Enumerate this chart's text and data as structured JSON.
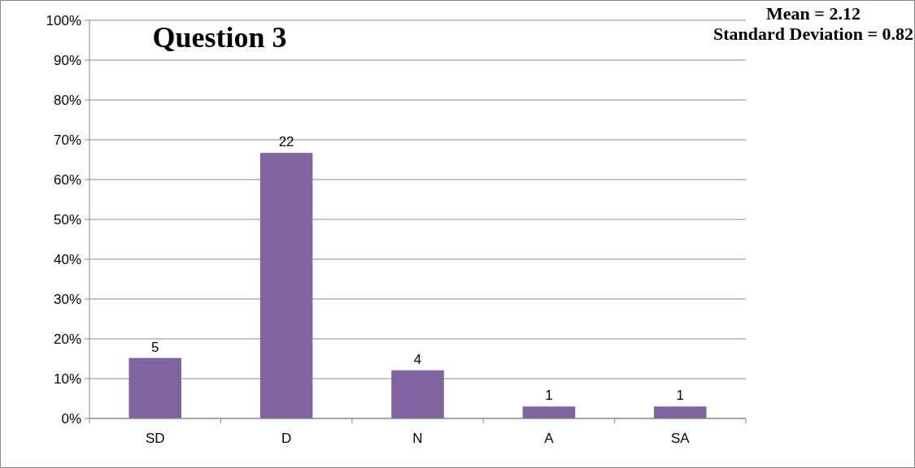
{
  "chart_data": {
    "type": "bar",
    "title": "Question 3",
    "categories": [
      "SD",
      "D",
      "N",
      "A",
      "SA"
    ],
    "values": [
      15.2,
      66.7,
      12.1,
      3,
      3
    ],
    "color": "#8064a2",
    "ylim": [
      0,
      100
    ],
    "yticks": [
      {
        "value": 0,
        "label": "0%"
      },
      {
        "value": 10,
        "label": "10%"
      },
      {
        "value": 20,
        "label": "20%"
      },
      {
        "value": 30,
        "label": "30%"
      },
      {
        "value": 40,
        "label": "40%"
      },
      {
        "value": 50,
        "label": "50%"
      },
      {
        "value": 60,
        "label": "60%"
      },
      {
        "value": 70,
        "label": "70%"
      },
      {
        "value": 80,
        "label": "80%"
      },
      {
        "value": 90,
        "label": "90%"
      },
      {
        "value": 100,
        "label": "100%"
      }
    ],
    "grid": "y",
    "annotations": [
      "Mean = 2.12",
      "Standard Deviation = 0.82",
      {
        "text": "5",
        "x": "SD",
        "y": 15.2
      },
      {
        "text": "22",
        "x": "D",
        "y": 66.7
      },
      {
        "text": "4",
        "x": "N",
        "y": 12.1
      },
      {
        "text": "1",
        "x": "A",
        "y": 3
      },
      {
        "text": "1",
        "x": "SA",
        "y": 3
      }
    ]
  }
}
